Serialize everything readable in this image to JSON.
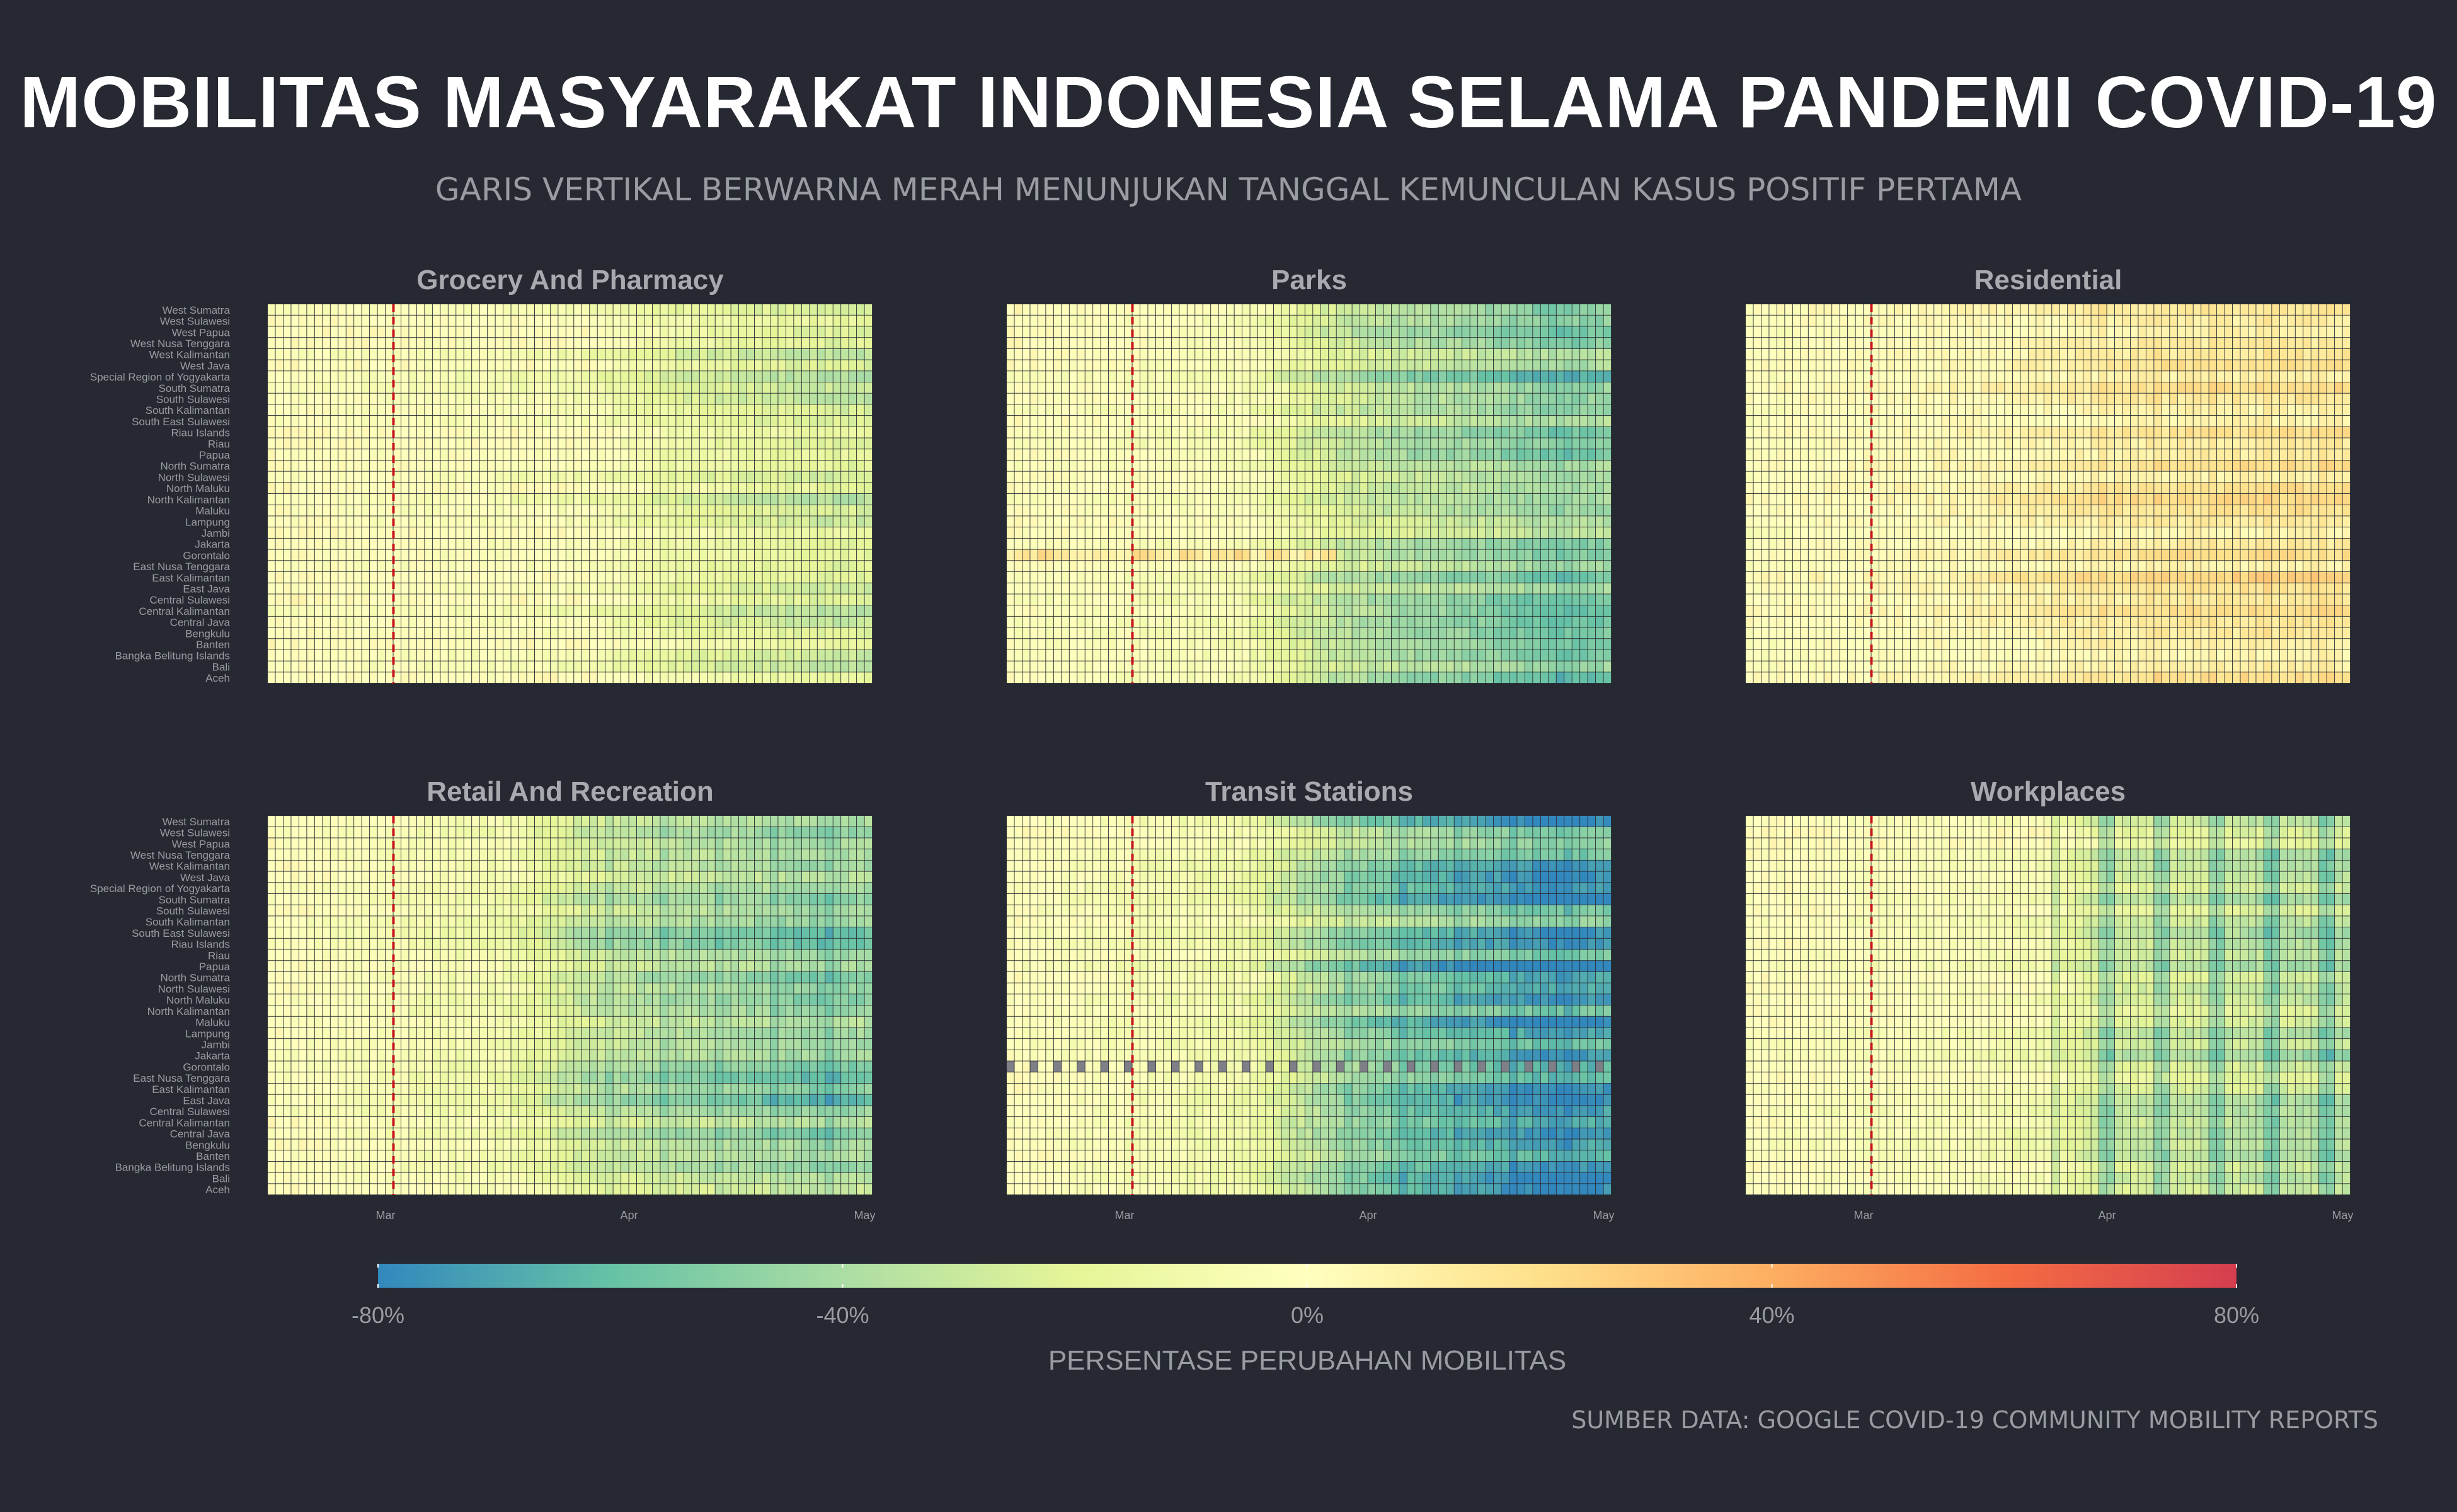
{
  "header": {
    "title": "MOBILITAS MASYARAKAT INDONESIA SELAMA PANDEMI COVID-19",
    "subtitle": "GARIS VERTIKAL BERWARNA MERAH MENUNJUKAN TANGGAL KEMUNCULAN KASUS POSITIF PERTAMA"
  },
  "footer": {
    "source": "SUMBER DATA: GOOGLE COVID-19 COMMUNITY MOBILITY REPORTS"
  },
  "colors": {
    "background": "#262931",
    "first_case_line": "#c8141e",
    "missing": "#7f7f88",
    "scale": [
      "#3288bd",
      "#66c2a5",
      "#abdda4",
      "#e6f598",
      "#ffffbf",
      "#fee08b",
      "#fdae61",
      "#f46d43",
      "#d53e4f"
    ]
  },
  "chart_data": {
    "type": "heatmap",
    "x": {
      "type": "date",
      "start": "2020-02-15",
      "end": "2020-05-01",
      "ticks": [
        "Mar",
        "Apr",
        "May"
      ],
      "tick_dates": [
        "2020-03-01",
        "2020-04-01",
        "2020-05-01"
      ]
    },
    "first_case_date": "2020-03-02",
    "regions": [
      "West Sumatra",
      "West Sulawesi",
      "West Papua",
      "West Nusa Tenggara",
      "West Kalimantan",
      "West Java",
      "Special Region of Yogyakarta",
      "South Sumatra",
      "South Sulawesi",
      "South Kalimantan",
      "South East Sulawesi",
      "Riau Islands",
      "Riau",
      "Papua",
      "North Sumatra",
      "North Sulawesi",
      "North Maluku",
      "North Kalimantan",
      "Maluku",
      "Lampung",
      "Jambi",
      "Jakarta",
      "Gorontalo",
      "East Nusa Tenggara",
      "East Kalimantan",
      "East Java",
      "Central Sulawesi",
      "Central Kalimantan",
      "Central Java",
      "Bengkulu",
      "Banten",
      "Bangka Belitung Islands",
      "Bali",
      "Aceh"
    ],
    "facets": [
      {
        "name": "Grocery And Pharmacy",
        "level": [
          [
            0,
            0
          ],
          [
            40,
            -5
          ],
          [
            50,
            -15
          ],
          [
            60,
            -20
          ],
          [
            70,
            -25
          ],
          [
            76,
            -25
          ]
        ]
      },
      {
        "name": "Parks",
        "level": [
          [
            0,
            0
          ],
          [
            30,
            -5
          ],
          [
            40,
            -25
          ],
          [
            50,
            -35
          ],
          [
            60,
            -40
          ],
          [
            70,
            -50
          ],
          [
            76,
            -45
          ]
        ]
      },
      {
        "name": "Residential",
        "level": [
          [
            0,
            0
          ],
          [
            30,
            5
          ],
          [
            40,
            10
          ],
          [
            50,
            14
          ],
          [
            60,
            15
          ],
          [
            70,
            16
          ],
          [
            76,
            16
          ]
        ]
      },
      {
        "name": "Retail And Recreation",
        "level": [
          [
            0,
            0
          ],
          [
            30,
            -10
          ],
          [
            40,
            -30
          ],
          [
            50,
            -38
          ],
          [
            60,
            -42
          ],
          [
            70,
            -50
          ],
          [
            76,
            -45
          ]
        ]
      },
      {
        "name": "Transit Stations",
        "level": [
          [
            0,
            0
          ],
          [
            30,
            -10
          ],
          [
            40,
            -35
          ],
          [
            50,
            -50
          ],
          [
            60,
            -58
          ],
          [
            70,
            -68
          ],
          [
            76,
            -62
          ]
        ]
      },
      {
        "name": "Workplaces",
        "level": [
          [
            0,
            0
          ],
          [
            38,
            -5
          ],
          [
            45,
            -25
          ],
          [
            55,
            -25
          ],
          [
            65,
            -30
          ],
          [
            76,
            -32
          ]
        ]
      }
    ],
    "legend": {
      "title": "PERSENTASE PERUBAHAN MOBILITAS",
      "labels": [
        "-80%",
        "-40%",
        "0%",
        "40%",
        "80%"
      ],
      "values": [
        -80,
        -40,
        0,
        40,
        80
      ]
    }
  }
}
